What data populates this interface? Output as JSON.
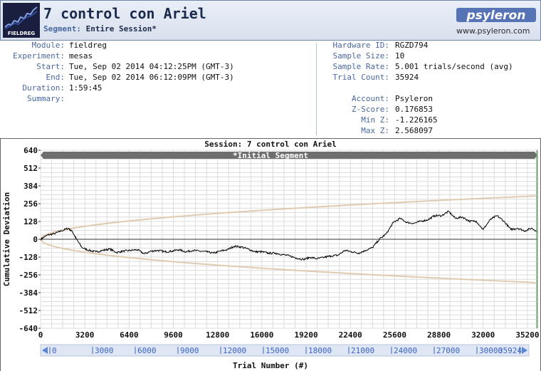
{
  "header": {
    "title": "7 control con Ariel",
    "segment_label": "Segment:",
    "segment_value": "Entire Session*",
    "logo_text": "FIELDREG",
    "brand": "psyleron",
    "url": "www.psyleron.com"
  },
  "info_left": [
    {
      "label": "Module:",
      "value": "fieldreg"
    },
    {
      "label": "Experiment:",
      "value": "mesas"
    },
    {
      "label": "Start:",
      "value": "Tue, Sep 02 2014 04:12:25PM (GMT-3)"
    },
    {
      "label": "End:",
      "value": "Tue, Sep 02 2014 06:12:09PM (GMT-3)"
    },
    {
      "label": "Duration:",
      "value": "1:59:45"
    },
    {
      "label": "Summary:",
      "value": ""
    }
  ],
  "info_right": [
    {
      "label": "Hardware ID:",
      "value": "RGZD794"
    },
    {
      "label": "Sample Size:",
      "value": "10"
    },
    {
      "label": "Sample Rate:",
      "value": "5.001 trials/second (avg)"
    },
    {
      "label": "Trial Count:",
      "value": "35924"
    }
  ],
  "info_right2": [
    {
      "label": "Account:",
      "value": "Psyleron"
    },
    {
      "label": "Z-Score:",
      "value": "0.176853"
    },
    {
      "label": "Min Z:",
      "value": "-1.226165"
    },
    {
      "label": "Max Z:",
      "value": "2.568097"
    }
  ],
  "colors": {
    "header_bg": "#dde4f0",
    "label_blue": "#4967a0",
    "title_navy": "#1b2b4b",
    "envelope": "#e0cbb0",
    "trace": "#000000",
    "segment_bar": "#6e6e6e",
    "grid": "#dcdcdc",
    "scroll_bg": "#dfe7f4",
    "tick_blue": "#3c64c4"
  },
  "chart_data": {
    "type": "line",
    "title": "Session: 7 control con Ariel",
    "segment_label": "*Initial Segment",
    "xlabel": "Trial Number (#)",
    "ylabel": "Cumulative Deviation",
    "xlim": [
      0,
      35924
    ],
    "ylim": [
      -640,
      640
    ],
    "x_ticks": [
      0,
      3200,
      6400,
      9600,
      12800,
      16000,
      19200,
      22400,
      25600,
      28800,
      32000,
      35200
    ],
    "y_ticks": [
      640,
      512,
      384,
      256,
      128,
      0,
      -128,
      -256,
      -384,
      -512,
      -640
    ],
    "scroll_ticks": [
      "0",
      "3000",
      "6000",
      "9000",
      "12000",
      "15000",
      "18000",
      "21000",
      "24000",
      "27000",
      "30000",
      "35924"
    ],
    "envelope": "±1.645·√n (p = 0.05)",
    "grid": true,
    "series": [
      {
        "x": [
          0,
          500,
          1000,
          1500,
          2000,
          2300,
          2600,
          3000,
          3500,
          4000,
          4500,
          5000,
          5500,
          6000,
          6500,
          7000,
          7500,
          8000,
          8500,
          9000,
          9500,
          10000,
          10500,
          11000,
          11500,
          12000,
          12500,
          13000,
          13500,
          14000,
          14500,
          15000,
          15500,
          16000,
          16500,
          17000,
          17500,
          18000,
          18500,
          19000,
          19500,
          20000,
          20500,
          21000,
          21500,
          22000,
          22500,
          23000,
          23500,
          24000,
          24500,
          25000,
          25500,
          26000,
          26500,
          27000,
          27500,
          28000,
          28500,
          29000,
          29500,
          30000,
          30500,
          31000,
          31500,
          32000,
          32500,
          33000,
          33500,
          34000,
          34500,
          35000,
          35500,
          35924
        ],
        "y": [
          0,
          30,
          40,
          60,
          80,
          55,
          0,
          -60,
          -80,
          -90,
          -80,
          -70,
          -95,
          -85,
          -80,
          -75,
          -105,
          -85,
          -80,
          -90,
          -85,
          -75,
          -90,
          -80,
          -85,
          -90,
          -100,
          -85,
          -75,
          -50,
          -55,
          -70,
          -90,
          -90,
          -100,
          -100,
          -110,
          -120,
          -135,
          -145,
          -130,
          -140,
          -130,
          -120,
          -115,
          -80,
          -90,
          -100,
          -80,
          -60,
          0,
          40,
          120,
          150,
          120,
          115,
          130,
          140,
          170,
          170,
          200,
          150,
          160,
          130,
          130,
          70,
          140,
          170,
          130,
          70,
          80,
          60,
          80,
          55
        ]
      }
    ]
  }
}
